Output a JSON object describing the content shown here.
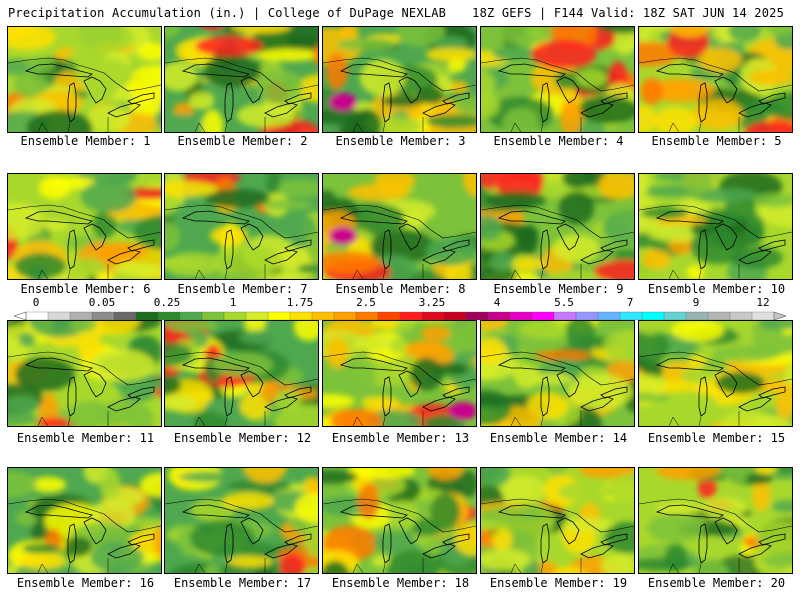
{
  "header": {
    "left_title": "Precipitation Accumulation (in.) | College of DuPage NEXLAB",
    "right_title": "18Z GEFS | F144 Valid: 18Z SAT JUN 14 2025"
  },
  "members": [
    "Ensemble Member: 1",
    "Ensemble Member: 2",
    "Ensemble Member: 3",
    "Ensemble Member: 4",
    "Ensemble Member: 5",
    "Ensemble Member: 6",
    "Ensemble Member: 7",
    "Ensemble Member: 8",
    "Ensemble Member: 9",
    "Ensemble Member: 10",
    "Ensemble Member: 11",
    "Ensemble Member: 12",
    "Ensemble Member: 13",
    "Ensemble Member: 14",
    "Ensemble Member: 15",
    "Ensemble Member: 16",
    "Ensemble Member: 17",
    "Ensemble Member: 18",
    "Ensemble Member: 19",
    "Ensemble Member: 20"
  ],
  "colorbar": {
    "tick_labels": [
      "0",
      "0.05",
      "0.25",
      "1",
      "1.75",
      "2.5",
      "3.25",
      "4",
      "5.5",
      "7",
      "9",
      "12"
    ],
    "colors": [
      "#ffffff",
      "#d8d8d8",
      "#b0b0b0",
      "#8c8c8c",
      "#686868",
      "#1d6b1d",
      "#2f8a2f",
      "#4fa84f",
      "#7cc23a",
      "#a8d82c",
      "#d4ec2a",
      "#ffff00",
      "#ffe000",
      "#ffc000",
      "#ffa000",
      "#ff7800",
      "#ff4600",
      "#ff1e1e",
      "#e00a1e",
      "#c8001e",
      "#a0005a",
      "#c8008c",
      "#e600c8",
      "#ff00ff",
      "#c878ff",
      "#9696ff",
      "#64b4ff",
      "#32e6ff",
      "#00ffff",
      "#64d2d2",
      "#96b4b4",
      "#b4b4b4",
      "#c8c8c8",
      "#e0e0e0"
    ]
  }
}
